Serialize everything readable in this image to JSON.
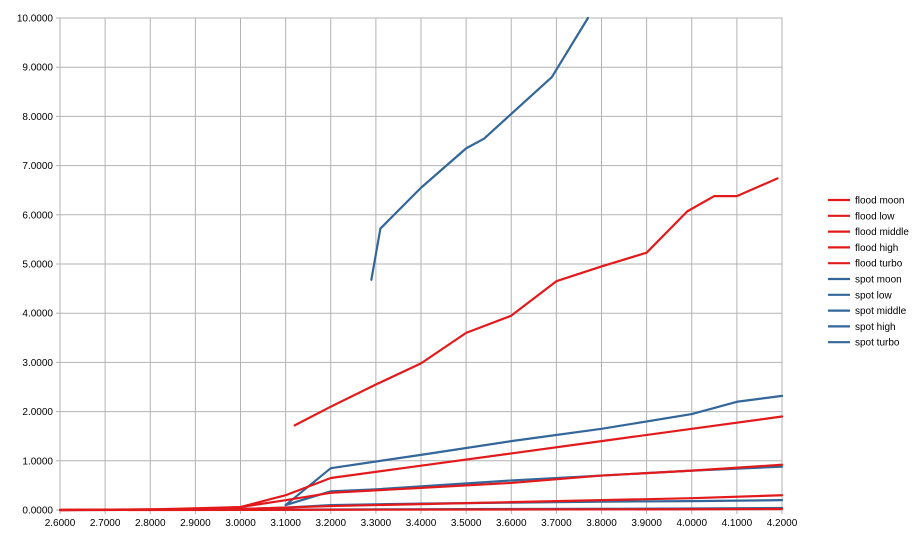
{
  "chart_data": {
    "type": "line",
    "title": "",
    "xlabel": "",
    "ylabel": "",
    "xlim": [
      2.6,
      4.2
    ],
    "ylim": [
      0,
      10
    ],
    "grid": true,
    "legend_position": "right",
    "x_ticks": [
      2.6,
      2.7,
      2.8,
      2.9,
      3.0,
      3.1,
      3.2,
      3.3,
      3.4,
      3.5,
      3.6,
      3.7,
      3.8,
      3.9,
      4.0,
      4.1,
      4.2
    ],
    "x_tick_labels": [
      "2.6000",
      "2.7000",
      "2.8000",
      "2.9000",
      "3.0000",
      "3.1000",
      "3.2000",
      "3.3000",
      "3.4000",
      "3.5000",
      "3.6000",
      "3.7000",
      "3.8000",
      "3.9000",
      "4.0000",
      "4.1000",
      "4.2000"
    ],
    "y_ticks": [
      0,
      1,
      2,
      3,
      4,
      5,
      6,
      7,
      8,
      9,
      10
    ],
    "y_tick_labels": [
      "0.0000",
      "1.0000",
      "2.0000",
      "3.0000",
      "4.0000",
      "5.0000",
      "6.0000",
      "7.0000",
      "8.0000",
      "9.0000",
      "10.0000"
    ],
    "series": [
      {
        "name": "flood moon",
        "color": "#e31a1c",
        "points": [
          [
            2.6,
            0.0
          ],
          [
            3.0,
            0.002
          ],
          [
            3.2,
            0.005
          ],
          [
            3.6,
            0.01
          ],
          [
            4.0,
            0.015
          ],
          [
            4.2,
            0.02
          ]
        ]
      },
      {
        "name": "flood low",
        "color": "#e31a1c",
        "points": [
          [
            2.6,
            0.0
          ],
          [
            2.9,
            0.005
          ],
          [
            3.0,
            0.02
          ],
          [
            3.1,
            0.05
          ],
          [
            3.2,
            0.08
          ],
          [
            3.4,
            0.12
          ],
          [
            3.6,
            0.16
          ],
          [
            3.8,
            0.2
          ],
          [
            4.0,
            0.24
          ],
          [
            4.2,
            0.3
          ]
        ]
      },
      {
        "name": "flood middle",
        "color": "#e31a1c",
        "points": [
          [
            2.6,
            0.0
          ],
          [
            2.9,
            0.02
          ],
          [
            3.0,
            0.06
          ],
          [
            3.1,
            0.2
          ],
          [
            3.2,
            0.35
          ],
          [
            3.4,
            0.45
          ],
          [
            3.6,
            0.55
          ],
          [
            3.8,
            0.7
          ],
          [
            4.0,
            0.8
          ],
          [
            4.2,
            0.92
          ]
        ]
      },
      {
        "name": "flood high",
        "color": "#e31a1c",
        "points": [
          [
            2.6,
            0.0
          ],
          [
            2.8,
            0.01
          ],
          [
            3.0,
            0.06
          ],
          [
            3.1,
            0.3
          ],
          [
            3.2,
            0.65
          ],
          [
            3.4,
            0.9
          ],
          [
            3.6,
            1.15
          ],
          [
            3.8,
            1.4
          ],
          [
            4.0,
            1.65
          ],
          [
            4.2,
            1.9
          ]
        ]
      },
      {
        "name": "flood turbo",
        "color": "#e31a1c",
        "points": [
          [
            3.12,
            1.72
          ],
          [
            3.2,
            2.1
          ],
          [
            3.3,
            2.55
          ],
          [
            3.4,
            2.98
          ],
          [
            3.5,
            3.6
          ],
          [
            3.6,
            3.95
          ],
          [
            3.7,
            4.65
          ],
          [
            3.8,
            4.95
          ],
          [
            3.9,
            5.23
          ],
          [
            3.99,
            6.07
          ],
          [
            4.05,
            6.38
          ],
          [
            4.1,
            6.38
          ],
          [
            4.19,
            6.74
          ]
        ]
      },
      {
        "name": "spot moon",
        "color": "#336699",
        "points": [
          [
            2.6,
            0.0
          ],
          [
            3.0,
            0.005
          ],
          [
            3.2,
            0.01
          ],
          [
            3.6,
            0.02
          ],
          [
            4.0,
            0.03
          ],
          [
            4.2,
            0.04
          ]
        ]
      },
      {
        "name": "spot low",
        "color": "#336699",
        "points": [
          [
            3.0,
            0.02
          ],
          [
            3.1,
            0.05
          ],
          [
            3.2,
            0.1
          ],
          [
            3.4,
            0.13
          ],
          [
            3.6,
            0.15
          ],
          [
            3.8,
            0.17
          ],
          [
            4.0,
            0.18
          ],
          [
            4.2,
            0.2
          ]
        ]
      },
      {
        "name": "spot middle",
        "color": "#336699",
        "points": [
          [
            3.1,
            0.1
          ],
          [
            3.2,
            0.38
          ],
          [
            3.3,
            0.42
          ],
          [
            3.4,
            0.48
          ],
          [
            3.6,
            0.6
          ],
          [
            3.8,
            0.7
          ],
          [
            4.0,
            0.8
          ],
          [
            4.2,
            0.88
          ]
        ]
      },
      {
        "name": "spot high",
        "color": "#336699",
        "points": [
          [
            3.1,
            0.1
          ],
          [
            3.2,
            0.85
          ],
          [
            3.4,
            1.12
          ],
          [
            3.6,
            1.4
          ],
          [
            3.8,
            1.65
          ],
          [
            4.0,
            1.95
          ],
          [
            4.1,
            2.2
          ],
          [
            4.2,
            2.32
          ]
        ]
      },
      {
        "name": "spot turbo",
        "color": "#336699",
        "points": [
          [
            3.29,
            4.68
          ],
          [
            3.31,
            5.72
          ],
          [
            3.4,
            6.55
          ],
          [
            3.5,
            7.35
          ],
          [
            3.54,
            7.55
          ],
          [
            3.69,
            8.8
          ],
          [
            3.77,
            10.0
          ]
        ]
      }
    ]
  }
}
